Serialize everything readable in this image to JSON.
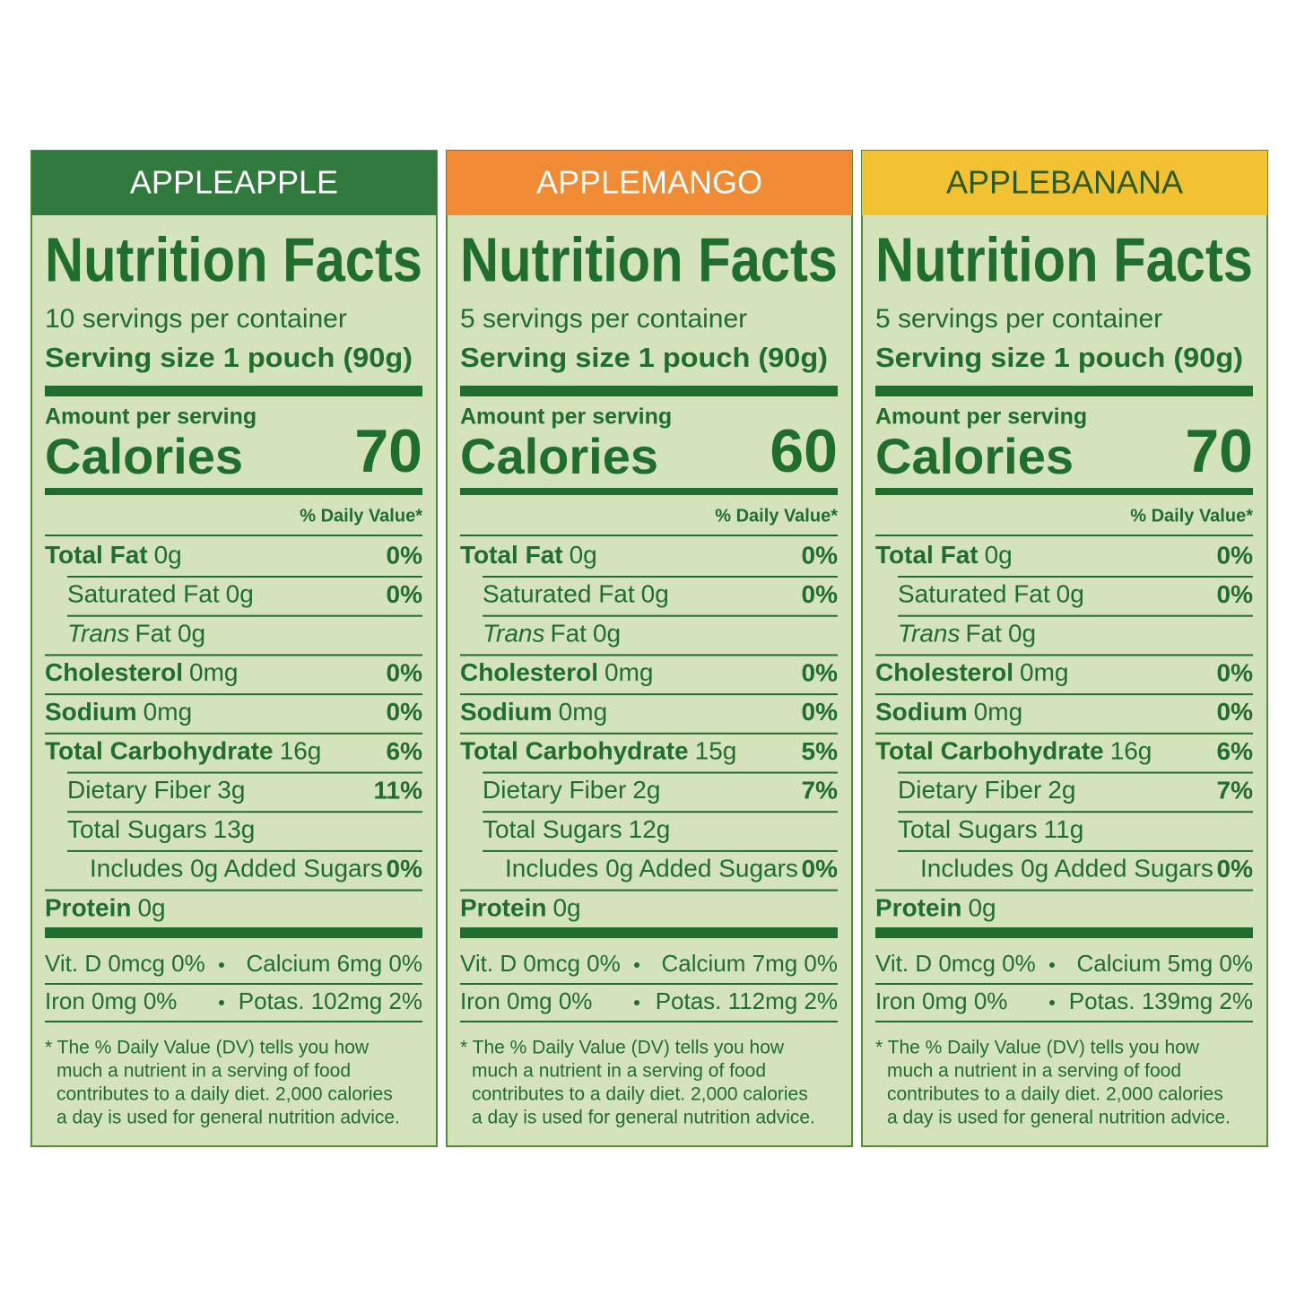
{
  "panels": [
    {
      "flavor": "APPLEAPPLE",
      "header_color": "#2f7a3c",
      "flavor_color": "#ffffff",
      "title": "Nutrition Facts",
      "servings": "10 servings per container",
      "serving_size": "Serving size 1 pouch (90g)",
      "amount_per_serving": "Amount per serving",
      "calories_label": "Calories",
      "calories": "70",
      "daily_value_header": "% Daily Value*",
      "rows": [
        {
          "level": 0,
          "name": "Total Fat",
          "amount": "0g",
          "dv": "0%"
        },
        {
          "level": 1,
          "name": "Saturated Fat",
          "amount": "0g",
          "dv": "0%"
        },
        {
          "level": 1,
          "italic": "Trans",
          "name": "Fat",
          "amount": "0g"
        },
        {
          "level": 0,
          "name": "Cholesterol",
          "amount": "0mg",
          "dv": "0%"
        },
        {
          "level": 0,
          "name": "Sodium",
          "amount": "0mg",
          "dv": "0%"
        },
        {
          "level": 0,
          "name": "Total Carbohydrate",
          "amount": "16g",
          "dv": "6%"
        },
        {
          "level": 1,
          "name": "Dietary Fiber",
          "amount": "3g",
          "dv": "11%"
        },
        {
          "level": 1,
          "name": "Total Sugars",
          "amount": "13g"
        },
        {
          "level": 2,
          "name": "Includes 0g Added Sugars",
          "dv": "0%"
        },
        {
          "level": 0,
          "name": "Protein",
          "amount": "0g"
        }
      ],
      "vitamins": [
        [
          "Vit. D 0mcg 0%",
          "Calcium 6mg 0%"
        ],
        [
          "Iron 0mg 0%",
          "Potas. 102mg 2%"
        ]
      ],
      "footnote": [
        "* The % Daily Value (DV) tells you how",
        "much a nutrient in a serving of food",
        "contributes to a daily diet. 2,000 calories",
        "a day is used for general nutrition advice."
      ]
    },
    {
      "flavor": "APPLEMANGO",
      "header_color": "#ef8a35",
      "flavor_color": "#ffffff",
      "title": "Nutrition Facts",
      "servings": "5 servings per container",
      "serving_size": "Serving size 1 pouch (90g)",
      "amount_per_serving": "Amount per serving",
      "calories_label": "Calories",
      "calories": "60",
      "daily_value_header": "% Daily Value*",
      "rows": [
        {
          "level": 0,
          "name": "Total Fat",
          "amount": "0g",
          "dv": "0%"
        },
        {
          "level": 1,
          "name": "Saturated Fat",
          "amount": "0g",
          "dv": "0%"
        },
        {
          "level": 1,
          "italic": "Trans",
          "name": "Fat",
          "amount": "0g"
        },
        {
          "level": 0,
          "name": "Cholesterol",
          "amount": "0mg",
          "dv": "0%"
        },
        {
          "level": 0,
          "name": "Sodium",
          "amount": "0mg",
          "dv": "0%"
        },
        {
          "level": 0,
          "name": "Total Carbohydrate",
          "amount": "15g",
          "dv": "5%"
        },
        {
          "level": 1,
          "name": "Dietary Fiber",
          "amount": "2g",
          "dv": "7%"
        },
        {
          "level": 1,
          "name": "Total Sugars",
          "amount": "12g"
        },
        {
          "level": 2,
          "name": "Includes 0g Added Sugars",
          "dv": "0%"
        },
        {
          "level": 0,
          "name": "Protein",
          "amount": "0g"
        }
      ],
      "vitamins": [
        [
          "Vit. D 0mcg 0%",
          "Calcium 7mg 0%"
        ],
        [
          "Iron 0mg 0%",
          "Potas. 112mg 2%"
        ]
      ],
      "footnote": [
        "* The % Daily Value (DV) tells you how",
        "much a nutrient in a serving of food",
        "contributes to a daily diet. 2,000 calories",
        "a day is used for general nutrition advice."
      ]
    },
    {
      "flavor": "APPLEBANANA",
      "header_color": "#f2c233",
      "flavor_color": "#2a5a1e",
      "title": "Nutrition Facts",
      "servings": "5 servings per container",
      "serving_size": "Serving size 1 pouch (90g)",
      "amount_per_serving": "Amount per serving",
      "calories_label": "Calories",
      "calories": "70",
      "daily_value_header": "% Daily Value*",
      "rows": [
        {
          "level": 0,
          "name": "Total Fat",
          "amount": "0g",
          "dv": "0%"
        },
        {
          "level": 1,
          "name": "Saturated Fat",
          "amount": "0g",
          "dv": "0%"
        },
        {
          "level": 1,
          "italic": "Trans",
          "name": "Fat",
          "amount": "0g"
        },
        {
          "level": 0,
          "name": "Cholesterol",
          "amount": "0mg",
          "dv": "0%"
        },
        {
          "level": 0,
          "name": "Sodium",
          "amount": "0mg",
          "dv": "0%"
        },
        {
          "level": 0,
          "name": "Total Carbohydrate",
          "amount": "16g",
          "dv": "6%"
        },
        {
          "level": 1,
          "name": "Dietary Fiber",
          "amount": "2g",
          "dv": "7%"
        },
        {
          "level": 1,
          "name": "Total Sugars",
          "amount": "11g"
        },
        {
          "level": 2,
          "name": "Includes 0g Added Sugars",
          "dv": "0%"
        },
        {
          "level": 0,
          "name": "Protein",
          "amount": "0g"
        }
      ],
      "vitamins": [
        [
          "Vit. D 0mcg 0%",
          "Calcium 5mg 0%"
        ],
        [
          "Iron 0mg 0%",
          "Potas. 139mg 2%"
        ]
      ],
      "footnote": [
        "* The % Daily Value (DV) tells you how",
        "much a nutrient in a serving of food",
        "contributes to a daily diet. 2,000 calories",
        "a day is used for general nutrition advice."
      ]
    }
  ]
}
